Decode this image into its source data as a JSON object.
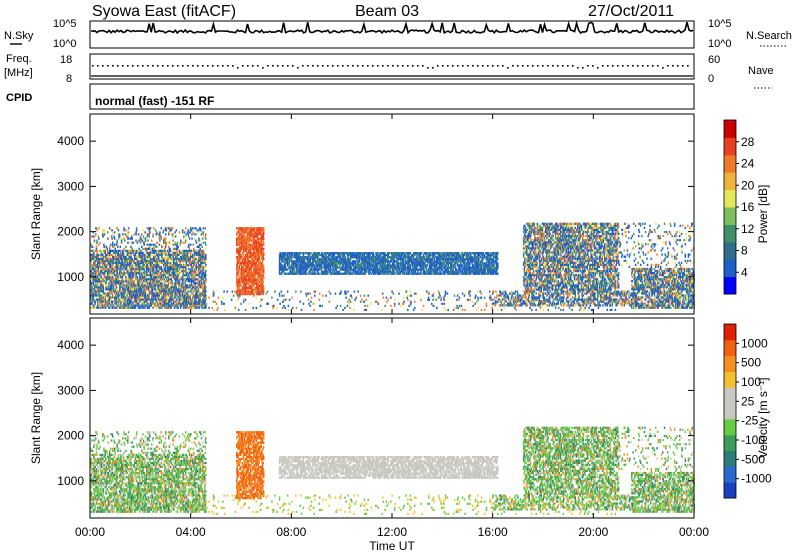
{
  "header": {
    "station": "Syowa East (fitACF)",
    "beam": "Beam 03",
    "date": "27/Oct/2011"
  },
  "noise_panel": {
    "left_label": "N.Sky",
    "right_label": "N.Search",
    "tick_top": "10^5",
    "tick_bottom": "10^0"
  },
  "freq_panel": {
    "left_label_1": "Freq.",
    "left_label_2": "[MHz]",
    "left_tick_top": "18",
    "left_tick_bottom": "8",
    "right_label": "Nave",
    "right_tick_top": "60",
    "right_tick_bottom": "0"
  },
  "cpid_panel": {
    "label": "CPID",
    "text": "normal (fast) -151 RF"
  },
  "chart_data": [
    {
      "type": "heatmap",
      "name": "power",
      "ylabel": "Slant Range [km]",
      "yticks": [
        "4000",
        "3000",
        "2000",
        "1000"
      ],
      "ylim": [
        180,
        4600
      ],
      "colorbar": {
        "label": "Power [dB]",
        "ticks": [
          "28",
          "24",
          "20",
          "16",
          "12",
          "8",
          "4"
        ],
        "colors": [
          "#0000ff",
          "#1f5fc8",
          "#2e6e8c",
          "#3f8f6a",
          "#7fbf5f",
          "#e6e65a",
          "#f0b43c",
          "#f07a28",
          "#e84020",
          "#cc0000"
        ]
      }
    },
    {
      "type": "heatmap",
      "name": "velocity",
      "ylabel": "Slant Range [km]",
      "yticks": [
        "4000",
        "3000",
        "2000",
        "1000"
      ],
      "ylim": [
        180,
        4600
      ],
      "colorbar": {
        "label": "Velocity [m s⁻¹]",
        "ticks": [
          "1000",
          "500",
          "100",
          "25",
          "-25",
          "-100",
          "-500",
          "-1000"
        ],
        "colors": [
          "#1a3fbf",
          "#2a6ad0",
          "#2e7c78",
          "#3f9d5a",
          "#66cc44",
          "#c8c8c0",
          "#c8c8c0",
          "#f5c030",
          "#f59020",
          "#f06010",
          "#e02000"
        ]
      }
    }
  ],
  "xaxis": {
    "label": "Time UT",
    "ticks": [
      "00:00",
      "04:00",
      "08:00",
      "12:00",
      "16:00",
      "20:00",
      "00:00"
    ]
  }
}
